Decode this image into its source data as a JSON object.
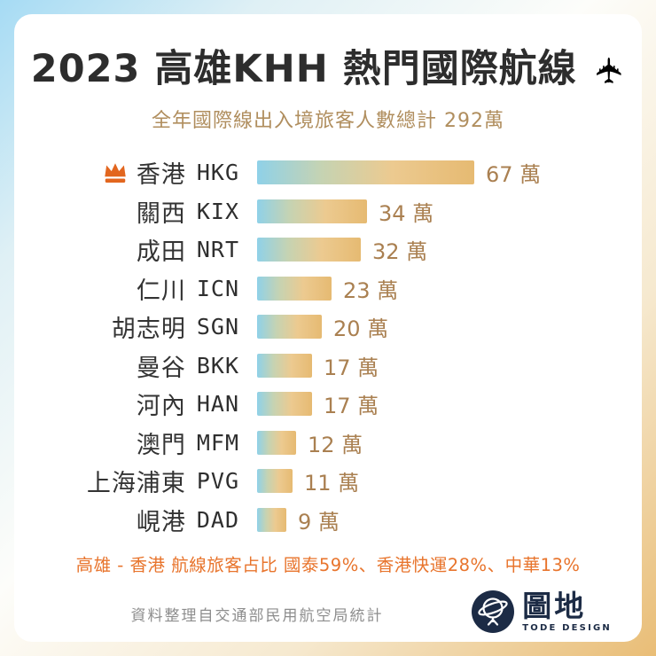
{
  "header": {
    "title": "2023 高雄KHH 熱門國際航線",
    "title_icon": "airplane-icon",
    "subtitle": "全年國際線出入境旅客人數總計 292萬"
  },
  "chart": {
    "unit": "萬",
    "rows": [
      {
        "city": "香港",
        "code": "HKG",
        "value": 67,
        "display": "67 萬",
        "top_rank": true
      },
      {
        "city": "關西",
        "code": "KIX",
        "value": 34,
        "display": "34 萬",
        "top_rank": false
      },
      {
        "city": "成田",
        "code": "NRT",
        "value": 32,
        "display": "32 萬",
        "top_rank": false
      },
      {
        "city": "仁川",
        "code": "ICN",
        "value": 23,
        "display": "23 萬",
        "top_rank": false
      },
      {
        "city": "胡志明",
        "code": "SGN",
        "value": 20,
        "display": "20 萬",
        "top_rank": false
      },
      {
        "city": "曼谷",
        "code": "BKK",
        "value": 17,
        "display": "17 萬",
        "top_rank": false
      },
      {
        "city": "河內",
        "code": "HAN",
        "value": 17,
        "display": "17 萬",
        "top_rank": false
      },
      {
        "city": "澳門",
        "code": "MFM",
        "value": 12,
        "display": "12 萬",
        "top_rank": false
      },
      {
        "city": "上海浦東",
        "code": "PVG",
        "value": 11,
        "display": "11 萬",
        "top_rank": false
      },
      {
        "city": "峴港",
        "code": "DAD",
        "value": 9,
        "display": "9 萬",
        "top_rank": false
      }
    ]
  },
  "chart_data": {
    "type": "bar",
    "orientation": "horizontal",
    "title": "2023 高雄KHH 熱門國際航線",
    "subtitle": "全年國際線出入境旅客人數總計 292萬",
    "total_passengers_wan": 292,
    "unit": "萬",
    "categories": [
      "香港 HKG",
      "關西 KIX",
      "成田 NRT",
      "仁川 ICN",
      "胡志明 SGN",
      "曼谷 BKK",
      "河內 HAN",
      "澳門 MFM",
      "上海浦東 PVG",
      "峴港 DAD"
    ],
    "values": [
      67,
      34,
      32,
      23,
      20,
      17,
      17,
      12,
      11,
      9
    ],
    "xlim": [
      0,
      67
    ],
    "grid": false,
    "legend": false,
    "annotation": "高雄 - 香港 航線旅客占比 國泰59%、香港快運28%、中華13%",
    "bar_gradient": [
      "#8fd1e8",
      "#c6d3b2",
      "#ecca90",
      "#e6ba72"
    ]
  },
  "note": {
    "text": "高雄 - 香港 航線旅客占比 國泰59%、香港快運28%、中華13%"
  },
  "footer": {
    "source": "資料整理自交通部民用航空局統計",
    "logo_cn": "圖地",
    "logo_en": "TODE DESIGN"
  },
  "colors": {
    "title": "#2d2d2d",
    "subtitle": "#b08e5e",
    "value_text": "#aa8051",
    "note_orange": "#e8742c",
    "crown_orange": "#e2661f",
    "logo_navy": "#1c2b45",
    "bg_blue": "#a6dbf4",
    "bg_gold": "#e9bd76"
  }
}
